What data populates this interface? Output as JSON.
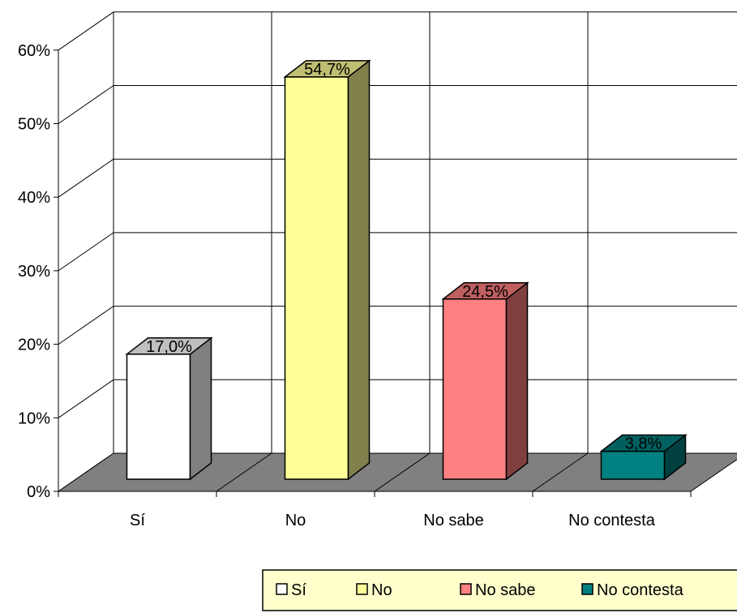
{
  "chart_data": {
    "type": "bar",
    "style": "3d-column",
    "categories": [
      "Sí",
      "No",
      "No sabe",
      "No contesta"
    ],
    "values": [
      17.0,
      54.7,
      24.5,
      3.8
    ],
    "data_labels": [
      "17,0%",
      "54,7%",
      "24,5%",
      "3,8%"
    ],
    "y_ticks": [
      "0%",
      "10%",
      "20%",
      "30%",
      "40%",
      "50%",
      "60%"
    ],
    "ylim": [
      0,
      60
    ],
    "grid": true,
    "legend_position": "bottom-right",
    "legend": [
      "Sí",
      "No",
      "No sabe",
      "No contesta"
    ],
    "colors": {
      "Sí": "#ffffff",
      "No": "#ffff99",
      "No sabe": "#ff8080",
      "No contesta": "#008080"
    },
    "floor_color": "#808080"
  }
}
